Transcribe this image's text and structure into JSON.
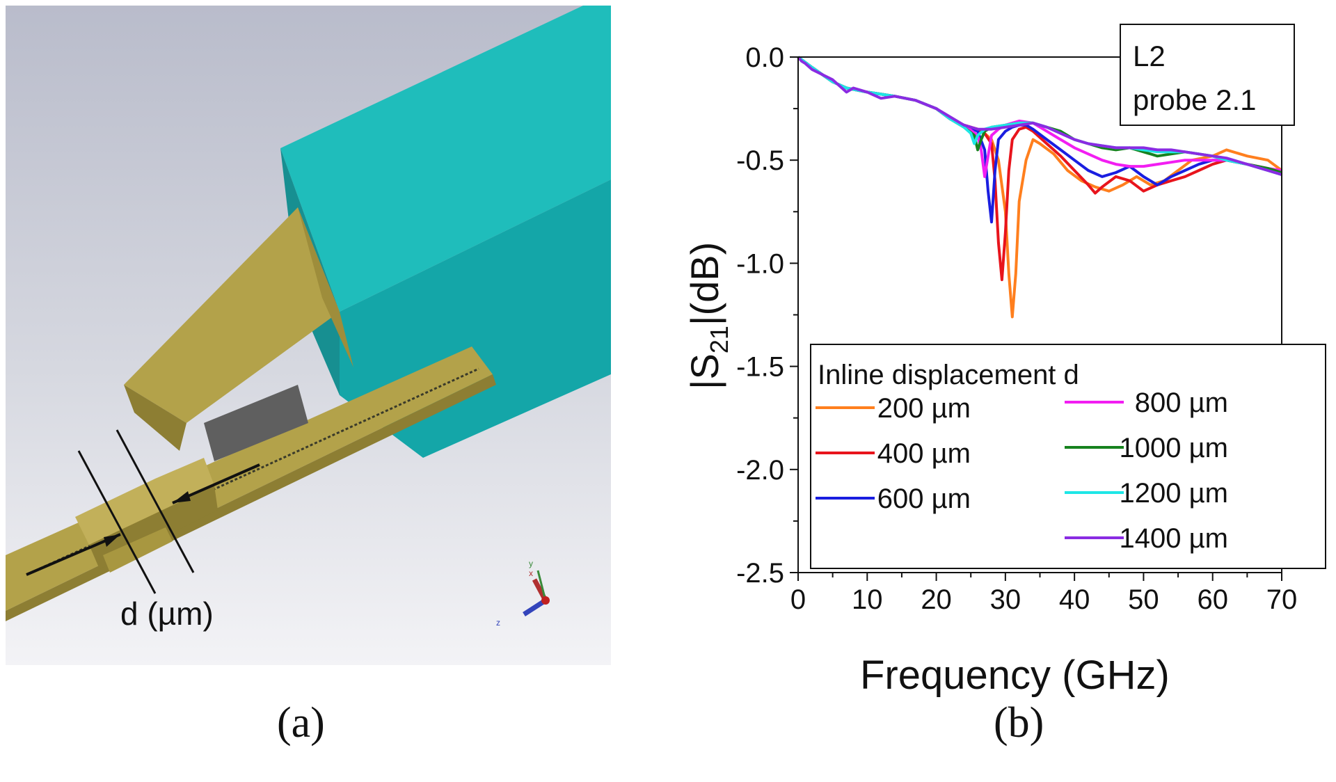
{
  "figure": {
    "caption_a": "(a)",
    "caption_b": "(b)"
  },
  "panel_a": {
    "dimension_label": "d (µm)",
    "axis_triad": {
      "y": "y",
      "x": "x",
      "z": "z"
    },
    "colors": {
      "probe_body": "#1fbdbb",
      "probe_body_dark": "#14a6a8",
      "conductor": "#b3a24a",
      "conductor_dark": "#8d7e33",
      "substrate": "#5f5f5f",
      "background_top": "#b9bccb",
      "background_bottom": "#f3f3f6"
    }
  },
  "chart_data": {
    "type": "line",
    "xlabel": "Frequency (GHz)",
    "ylabel": "|S21|(dB)",
    "xlim": [
      0,
      70
    ],
    "ylim": [
      -2.5,
      0.0
    ],
    "xticks": [
      0,
      10,
      20,
      30,
      40,
      50,
      60,
      70
    ],
    "yticks": [
      0.0,
      -0.5,
      -1.0,
      -1.5,
      -2.0,
      -2.5
    ],
    "ytick_labels": [
      "0.0",
      "-0.5",
      "-1.0",
      "-1.5",
      "-2.0",
      "-2.5"
    ],
    "grid": false,
    "annotation": {
      "line1": "L2",
      "line2": "probe 2.1",
      "placement": "top-right"
    },
    "legend": {
      "title": "Inline displacement d",
      "placement": "bottom-right"
    },
    "series": [
      {
        "name": "200 µm",
        "color": "#ff7f1e",
        "x": [
          0,
          2,
          5,
          7,
          10,
          14,
          17,
          20,
          22,
          24,
          26,
          27,
          28,
          29,
          30,
          30.5,
          31,
          31.5,
          32,
          33,
          34,
          35,
          37,
          39,
          41,
          43,
          45,
          47,
          49,
          51,
          53,
          55,
          57,
          60,
          62,
          65,
          68,
          70
        ],
        "y": [
          0,
          -0.05,
          -0.12,
          -0.15,
          -0.17,
          -0.19,
          -0.21,
          -0.25,
          -0.3,
          -0.33,
          -0.35,
          -0.37,
          -0.4,
          -0.5,
          -0.75,
          -1.05,
          -1.26,
          -1.05,
          -0.7,
          -0.5,
          -0.4,
          -0.42,
          -0.47,
          -0.55,
          -0.6,
          -0.63,
          -0.65,
          -0.62,
          -0.58,
          -0.62,
          -0.6,
          -0.55,
          -0.5,
          -0.48,
          -0.45,
          -0.48,
          -0.5,
          -0.55
        ]
      },
      {
        "name": "400 µm",
        "color": "#e8141c",
        "x": [
          0,
          2,
          5,
          7,
          10,
          14,
          17,
          20,
          22,
          24,
          26,
          27,
          28,
          28.5,
          29,
          29.5,
          30,
          30.5,
          31,
          32,
          33,
          34,
          36,
          38,
          40,
          42,
          43,
          44,
          46,
          48,
          50,
          52,
          54,
          56,
          58,
          60,
          62,
          65,
          68,
          70
        ],
        "y": [
          0,
          -0.05,
          -0.12,
          -0.15,
          -0.17,
          -0.19,
          -0.21,
          -0.25,
          -0.3,
          -0.33,
          -0.35,
          -0.37,
          -0.42,
          -0.6,
          -0.9,
          -1.08,
          -0.85,
          -0.55,
          -0.4,
          -0.35,
          -0.34,
          -0.36,
          -0.42,
          -0.48,
          -0.55,
          -0.62,
          -0.66,
          -0.63,
          -0.58,
          -0.6,
          -0.65,
          -0.62,
          -0.6,
          -0.58,
          -0.55,
          -0.52,
          -0.5,
          -0.52,
          -0.54,
          -0.56
        ]
      },
      {
        "name": "600 µm",
        "color": "#1a1ee0",
        "x": [
          0,
          2,
          5,
          7,
          10,
          14,
          17,
          20,
          22,
          24,
          26,
          27,
          27.5,
          28,
          28.5,
          29,
          30,
          31,
          32,
          33,
          34,
          36,
          38,
          40,
          42,
          44,
          46,
          48,
          50,
          52,
          54,
          56,
          58,
          60,
          62,
          65,
          68,
          70
        ],
        "y": [
          0,
          -0.05,
          -0.12,
          -0.15,
          -0.17,
          -0.19,
          -0.21,
          -0.25,
          -0.3,
          -0.33,
          -0.36,
          -0.45,
          -0.65,
          -0.8,
          -0.55,
          -0.4,
          -0.36,
          -0.34,
          -0.33,
          -0.33,
          -0.35,
          -0.4,
          -0.45,
          -0.5,
          -0.55,
          -0.58,
          -0.56,
          -0.53,
          -0.58,
          -0.62,
          -0.58,
          -0.55,
          -0.52,
          -0.5,
          -0.5,
          -0.52,
          -0.55,
          -0.57
        ]
      },
      {
        "name": "800 µm",
        "color": "#f21ef2",
        "x": [
          0,
          2,
          5,
          7,
          10,
          14,
          17,
          20,
          22,
          24,
          26,
          26.5,
          27,
          27.5,
          28,
          29,
          30,
          32,
          34,
          36,
          38,
          40,
          42,
          44,
          46,
          48,
          50,
          52,
          54,
          56,
          58,
          60,
          62,
          65,
          68,
          70
        ],
        "y": [
          0,
          -0.05,
          -0.12,
          -0.15,
          -0.17,
          -0.19,
          -0.21,
          -0.25,
          -0.3,
          -0.33,
          -0.38,
          -0.45,
          -0.58,
          -0.48,
          -0.38,
          -0.35,
          -0.33,
          -0.31,
          -0.32,
          -0.36,
          -0.4,
          -0.44,
          -0.47,
          -0.5,
          -0.52,
          -0.53,
          -0.53,
          -0.52,
          -0.51,
          -0.5,
          -0.5,
          -0.5,
          -0.5,
          -0.52,
          -0.54,
          -0.55
        ]
      },
      {
        "name": "1000 µm",
        "color": "#16821e",
        "x": [
          0,
          2,
          5,
          7,
          10,
          14,
          17,
          20,
          22,
          24,
          25.5,
          26,
          26.5,
          27,
          28,
          30,
          32,
          34,
          36,
          38,
          40,
          42,
          44,
          46,
          48,
          50,
          52,
          54,
          56,
          58,
          60,
          62,
          65,
          68,
          70
        ],
        "y": [
          0,
          -0.05,
          -0.12,
          -0.15,
          -0.17,
          -0.19,
          -0.21,
          -0.25,
          -0.3,
          -0.34,
          -0.38,
          -0.45,
          -0.4,
          -0.36,
          -0.34,
          -0.33,
          -0.32,
          -0.32,
          -0.34,
          -0.36,
          -0.4,
          -0.42,
          -0.44,
          -0.45,
          -0.44,
          -0.46,
          -0.48,
          -0.47,
          -0.46,
          -0.47,
          -0.48,
          -0.5,
          -0.52,
          -0.54,
          -0.56
        ]
      },
      {
        "name": "1200 µm",
        "color": "#1ee6e6",
        "x": [
          0,
          2,
          5,
          7,
          10,
          14,
          17,
          20,
          22,
          24,
          25,
          25.5,
          26,
          27,
          28,
          30,
          32,
          34,
          36,
          38,
          40,
          42,
          44,
          46,
          48,
          50,
          52,
          54,
          56,
          58,
          60,
          62,
          65,
          68,
          70
        ],
        "y": [
          0,
          -0.05,
          -0.12,
          -0.15,
          -0.17,
          -0.19,
          -0.21,
          -0.25,
          -0.3,
          -0.34,
          -0.37,
          -0.42,
          -0.38,
          -0.35,
          -0.34,
          -0.33,
          -0.32,
          -0.32,
          -0.34,
          -0.37,
          -0.4,
          -0.42,
          -0.43,
          -0.44,
          -0.44,
          -0.45,
          -0.46,
          -0.46,
          -0.46,
          -0.47,
          -0.48,
          -0.5,
          -0.52,
          -0.55,
          -0.57
        ]
      },
      {
        "name": "1400 µm",
        "color": "#8a2be2",
        "x": [
          0,
          0.5,
          1,
          2,
          5,
          7,
          8,
          10,
          12,
          14,
          17,
          20,
          22,
          24,
          26,
          28,
          30,
          32,
          34,
          36,
          38,
          40,
          42,
          44,
          46,
          48,
          50,
          52,
          54,
          56,
          58,
          60,
          62,
          65,
          68,
          70
        ],
        "y": [
          0,
          -0.02,
          -0.03,
          -0.06,
          -0.11,
          -0.17,
          -0.15,
          -0.17,
          -0.2,
          -0.19,
          -0.21,
          -0.25,
          -0.29,
          -0.33,
          -0.35,
          -0.35,
          -0.34,
          -0.33,
          -0.32,
          -0.34,
          -0.37,
          -0.4,
          -0.42,
          -0.43,
          -0.44,
          -0.44,
          -0.44,
          -0.45,
          -0.45,
          -0.46,
          -0.47,
          -0.48,
          -0.49,
          -0.52,
          -0.55,
          -0.57
        ]
      }
    ]
  }
}
